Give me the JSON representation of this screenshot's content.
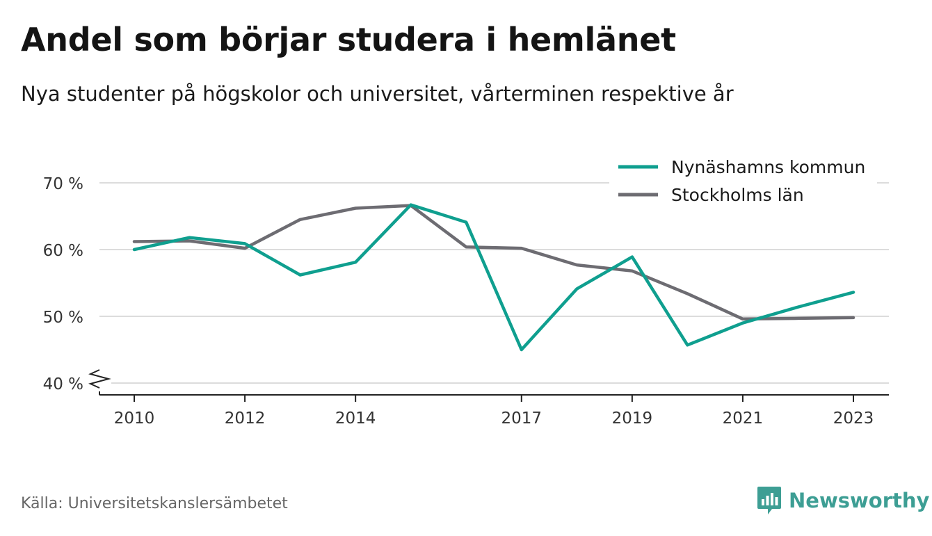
{
  "header": {
    "title": "Andel som börjar studera i hemlänet",
    "subtitle": "Nya studenter på högskolor och universitet, vårterminen respektive år"
  },
  "footer": {
    "source": "Källa: Universitetskanslersämbetet",
    "brand": "Newsworthy",
    "brand_icon": "bar-chart-speech-bubble-icon"
  },
  "chart_data": {
    "type": "line",
    "title": "Andel som börjar studera i hemlänet",
    "subtitle": "Nya studenter på högskolor och universitet, vårterminen respektive år",
    "xlabel": "",
    "ylabel": "",
    "x": [
      2010,
      2011,
      2012,
      2013,
      2014,
      2015,
      2016,
      2017,
      2018,
      2019,
      2020,
      2021,
      2022,
      2023
    ],
    "x_ticks": [
      2010,
      2012,
      2014,
      2017,
      2019,
      2021,
      2023
    ],
    "x_tick_labels": [
      "2010",
      "2012",
      "2014",
      "2017",
      "2019",
      "2021",
      "2023"
    ],
    "y_ticks": [
      40,
      50,
      60,
      70
    ],
    "y_tick_labels": [
      "40 %",
      "50 %",
      "60 %",
      "70 %"
    ],
    "ylim": [
      40,
      70
    ],
    "xlim": [
      2009.7,
      2023.7
    ],
    "y_axis_break": true,
    "grid": true,
    "legend_position": "top-right",
    "series": [
      {
        "name": "Nynäshamns kommun",
        "color": "#0f9f8f",
        "values": [
          60.0,
          61.8,
          60.9,
          56.2,
          58.1,
          66.7,
          64.1,
          45.0,
          54.1,
          58.9,
          45.7,
          49.0,
          51.4,
          53.6
        ]
      },
      {
        "name": "Stockholms län",
        "color": "#6d6c72",
        "values": [
          61.2,
          61.3,
          60.2,
          64.5,
          66.2,
          66.6,
          60.4,
          60.2,
          57.7,
          56.8,
          53.4,
          49.6,
          49.7,
          49.8
        ]
      }
    ]
  }
}
